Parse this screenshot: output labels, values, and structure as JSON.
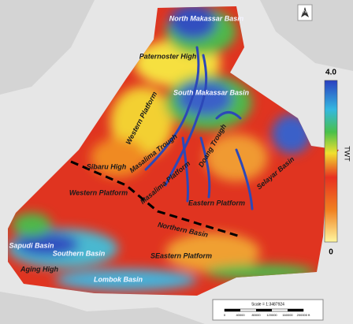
{
  "map": {
    "labels": [
      "North Makassar Basin",
      "Paternoster High",
      "South Makassar Basin",
      "Western Platform",
      "Masalima Trough",
      "Sibaru High",
      "Western Platform",
      "Masalima Platform",
      "Doang Trough",
      "Selayar Basin",
      "Eastern Platform",
      "Northern Basin",
      "Sapudi Basin",
      "Southern Basin",
      "Aging High",
      "SEastern Platform",
      "Lombok Basin"
    ],
    "north_arrow": "N",
    "colorbar": {
      "top_label": "4.0",
      "bottom_label": "0",
      "title": "TWT"
    },
    "scale": {
      "text": "Scale = 1:3487924",
      "ticks": [
        "0",
        "40000",
        "80000",
        "120000",
        "160000",
        "200000 ft"
      ]
    }
  }
}
